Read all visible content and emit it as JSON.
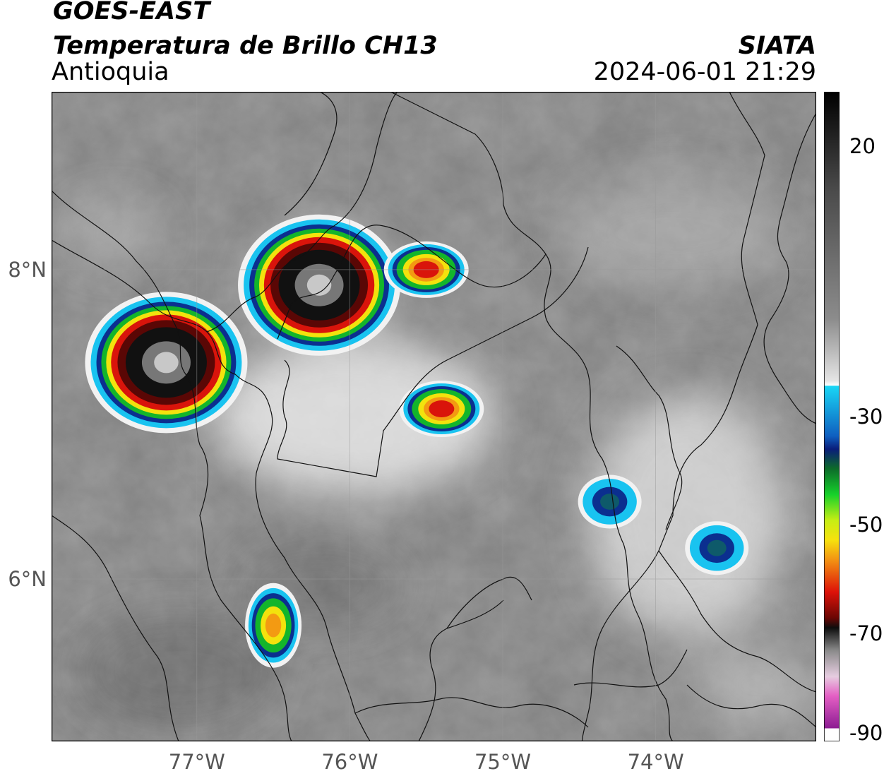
{
  "header": {
    "satellite": "GOES-EAST",
    "product": "Temperatura de Brillo CH13",
    "region": "Antioquia",
    "brand": "SIATA",
    "timestamp": "2024-06-01 21:29"
  },
  "map": {
    "lat_range": [
      4.95,
      9.15
    ],
    "lon_range": [
      -77.95,
      -72.95
    ],
    "gridlines": true,
    "lat_ticks": [
      {
        "value": 8,
        "label": "8°N"
      },
      {
        "value": 6,
        "label": "6°N"
      }
    ],
    "lon_ticks": [
      {
        "value": -77,
        "label": "77°W"
      },
      {
        "value": -76,
        "label": "76°W"
      },
      {
        "value": -75,
        "label": "75°W"
      },
      {
        "value": -74,
        "label": "74°W"
      }
    ],
    "storm_cells": [
      {
        "lon": -76.2,
        "lat": 7.9,
        "intensity": "deep"
      },
      {
        "lon": -77.2,
        "lat": 7.4,
        "intensity": "deep"
      },
      {
        "lon": -75.4,
        "lat": 7.1,
        "intensity": "strong"
      },
      {
        "lon": -76.5,
        "lat": 5.7,
        "intensity": "moderate"
      },
      {
        "lon": -75.5,
        "lat": 8.0,
        "intensity": "strong"
      },
      {
        "lon": -74.3,
        "lat": 6.5,
        "intensity": "light"
      },
      {
        "lon": -73.6,
        "lat": 6.2,
        "intensity": "light"
      }
    ]
  },
  "colorbar": {
    "range": [
      -90,
      30
    ],
    "labels": [
      {
        "value": 20,
        "label": "20"
      },
      {
        "value": -30,
        "label": "-30"
      },
      {
        "value": -50,
        "label": "-50"
      },
      {
        "value": -70,
        "label": "-70"
      },
      {
        "value": -90,
        "label": "-90"
      }
    ],
    "colors": {
      "warm_gray": "#6f6f6f",
      "cold_white": "#f2f2f2",
      "cyan": "#19c3f0",
      "blue": "#0b2f8f",
      "green": "#13b52b",
      "yellow": "#f3e20d",
      "orange": "#f39a12",
      "red": "#d9140b",
      "dark_red": "#5a0705",
      "black": "#111111",
      "pink": "#e15fc0",
      "purple": "#8a1c91"
    }
  }
}
